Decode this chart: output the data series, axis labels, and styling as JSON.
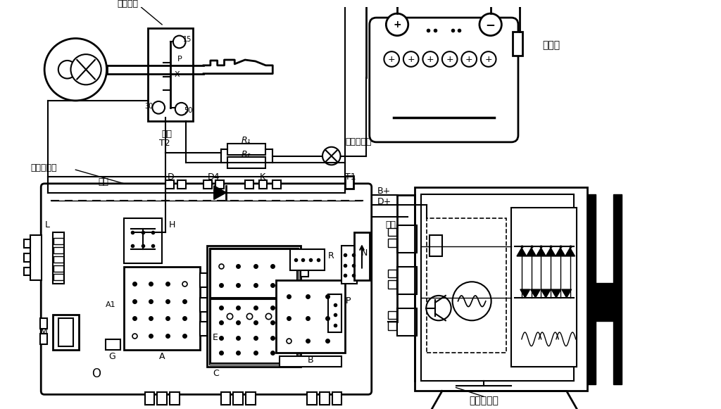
{
  "bg_color": "#ffffff",
  "line_color": "#000000",
  "labels": {
    "ignition_switch": "点火开关",
    "black": "黑色",
    "T2": "T2",
    "R1": "R₁",
    "R2": "R₂",
    "blue1": "蓝色",
    "charge_light": "充电指示灯",
    "central_box": "中央配电盒",
    "battery": "蓄电池",
    "D_label": "D",
    "D4_label": "D4",
    "K_label": "K",
    "T1_label": "T1",
    "R_label": "R",
    "N_label": "N",
    "L_label": "L",
    "H_label": "H",
    "E_label": "E",
    "P_label": "P",
    "M_label": "M",
    "G_label": "G",
    "A1_label": "A1",
    "A_label": "A",
    "C_label": "C",
    "B_label": "B",
    "O_label": "O",
    "Bplus": "B+",
    "Dplus": "D+",
    "blue2": "蓝色",
    "alternator": "交流发电机",
    "terminals_15": "15",
    "terminals_30": "30",
    "terminals_P": "P",
    "terminals_X": "X",
    "terminals_50": "50"
  }
}
